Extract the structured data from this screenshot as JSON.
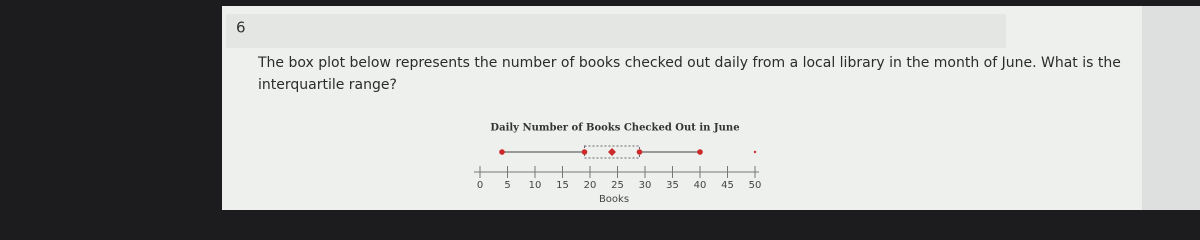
{
  "question": {
    "number": "6",
    "lines": [
      "The box plot below represents the number of books checked out daily from a local library in the month of June. What is the",
      "interquartile range?"
    ]
  },
  "chart_data": {
    "type": "box",
    "title": "Daily Number of Books Checked Out in June",
    "xlabel": "Books",
    "min": 4,
    "q1": 19,
    "median": 24,
    "q3": 29,
    "max": 40,
    "outliers": [
      50
    ],
    "color": "#cc2a2a",
    "xlim": [
      0,
      50
    ],
    "xticks": [
      0,
      5,
      10,
      15,
      20,
      25,
      30,
      35,
      40,
      45,
      50
    ]
  }
}
